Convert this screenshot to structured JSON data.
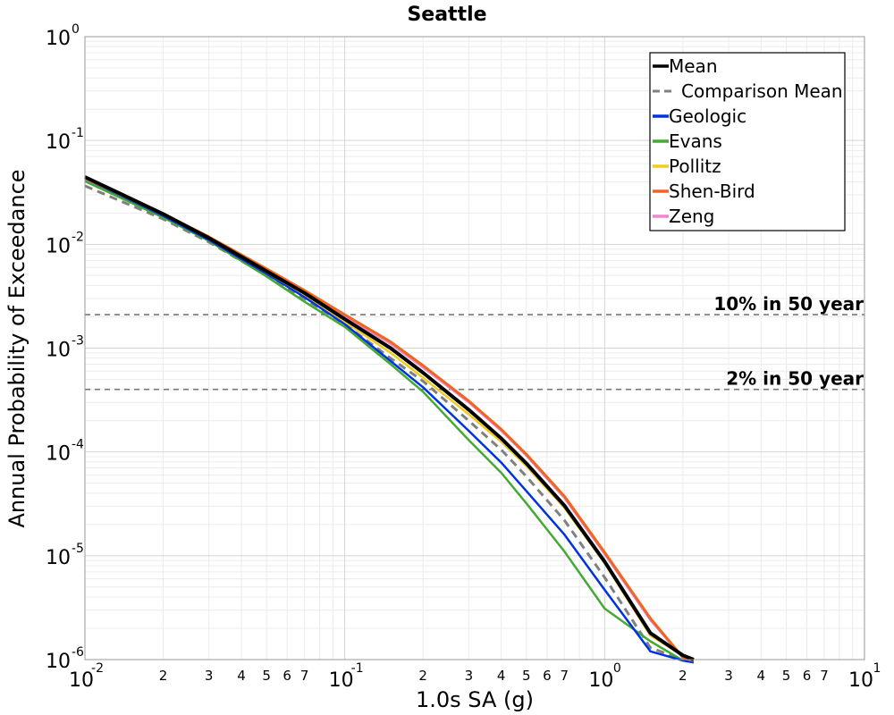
{
  "chart_data": {
    "type": "line",
    "title": "Seattle",
    "xlabel": "1.0s SA (g)",
    "ylabel": "Annual Probability of Exceedance",
    "xscale": "log",
    "yscale": "log",
    "xlim": [
      0.01,
      10
    ],
    "ylim": [
      1e-06,
      1
    ],
    "grid": true,
    "legend_position": "top-right",
    "x_major_ticks": [
      {
        "value": 0.01,
        "base": "10",
        "exp": "-2"
      },
      {
        "value": 0.1,
        "base": "10",
        "exp": "-1"
      },
      {
        "value": 1,
        "base": "10",
        "exp": "0"
      },
      {
        "value": 10,
        "base": "10",
        "exp": "1"
      }
    ],
    "x_minor_tick_labels": [
      "2",
      "3",
      "4",
      "5",
      "6",
      "7"
    ],
    "y_major_ticks": [
      {
        "value": 1,
        "base": "10",
        "exp": "0"
      },
      {
        "value": 0.1,
        "base": "10",
        "exp": "-1"
      },
      {
        "value": 0.01,
        "base": "10",
        "exp": "-2"
      },
      {
        "value": 0.001,
        "base": "10",
        "exp": "-3"
      },
      {
        "value": 0.0001,
        "base": "10",
        "exp": "-4"
      },
      {
        "value": 1e-05,
        "base": "10",
        "exp": "-5"
      },
      {
        "value": 1e-06,
        "base": "10",
        "exp": "-6"
      }
    ],
    "reference_lines": [
      {
        "label": "10% in 50 year",
        "y": 0.0021
      },
      {
        "label": "2% in 50 year",
        "y": 0.0004
      }
    ],
    "x": [
      0.01,
      0.02,
      0.03,
      0.05,
      0.07,
      0.1,
      0.15,
      0.2,
      0.3,
      0.4,
      0.5,
      0.7,
      1.0,
      1.5,
      2.0,
      2.2
    ],
    "series": [
      {
        "name": "Mean",
        "color": "#000000",
        "style": "solid",
        "width": 4,
        "values": [
          0.0445,
          0.0196,
          0.0115,
          0.0055,
          0.0034,
          0.0019,
          0.001,
          0.00058,
          0.000255,
          0.000135,
          7.75e-05,
          3.05e-05,
          8.8e-06,
          1.8e-06,
          1.1e-06,
          1e-06
        ]
      },
      {
        "name": "Comparison Mean",
        "color": "#808080",
        "style": "dashed",
        "width": 3,
        "values": [
          0.0365,
          0.0175,
          0.0105,
          0.005,
          0.003,
          0.0017,
          0.0008,
          0.00048,
          0.0002,
          0.000105,
          5.8e-05,
          2.2e-05,
          6.2e-06,
          1.3e-06,
          1e-06,
          9.5e-07
        ]
      },
      {
        "name": "Geologic",
        "color": "#0033dd",
        "style": "solid",
        "width": 2.5,
        "values": [
          0.043,
          0.0188,
          0.011,
          0.0052,
          0.0031,
          0.0017,
          0.00075,
          0.00042,
          0.00016,
          7.9e-05,
          4.2e-05,
          1.6e-05,
          4.7e-06,
          1.2e-06,
          9.8e-07,
          9.4e-07
        ]
      },
      {
        "name": "Evans",
        "color": "#44aa33",
        "style": "solid",
        "width": 2.5,
        "values": [
          0.0405,
          0.0181,
          0.0108,
          0.0049,
          0.0028,
          0.0016,
          0.0007,
          0.00038,
          0.00013,
          6.3e-05,
          3.2e-05,
          1.1e-05,
          3.1e-06,
          1.5e-06,
          9.8e-07,
          9.4e-07
        ]
      },
      {
        "name": "Pollitz",
        "color": "#eecc22",
        "style": "solid",
        "width": 2.5,
        "values": [
          0.0435,
          0.0193,
          0.0114,
          0.0054,
          0.0033,
          0.0018,
          0.0009,
          0.00052,
          0.00023,
          0.000125,
          7.3e-05,
          2.9e-05,
          8.5e-06,
          1.7e-06,
          1.1e-06,
          1e-06
        ]
      },
      {
        "name": "Shen-Bird",
        "color": "#ee6622",
        "style": "solid",
        "width": 3,
        "values": [
          0.0435,
          0.0197,
          0.0118,
          0.0058,
          0.0036,
          0.0021,
          0.00115,
          0.00068,
          0.00031,
          0.000165,
          9.5e-05,
          3.75e-05,
          1.08e-05,
          2.5e-06,
          1.05e-06,
          9.8e-07
        ]
      },
      {
        "name": "Zeng",
        "color": "#ee88cc",
        "style": "solid",
        "width": 2.5,
        "values": [
          0.0433,
          0.0195,
          0.0116,
          0.0056,
          0.0035,
          0.002,
          0.0011,
          0.00065,
          0.0003,
          0.00016,
          9.2e-05,
          3.6e-05,
          1.04e-05,
          2.4e-06,
          1.04e-06,
          9.7e-07
        ]
      }
    ]
  }
}
